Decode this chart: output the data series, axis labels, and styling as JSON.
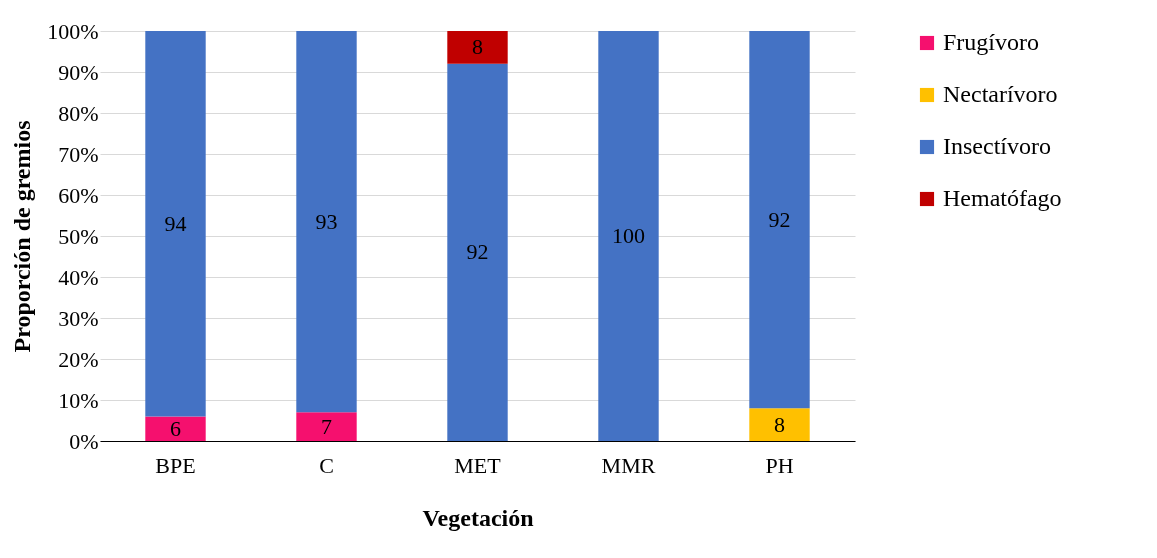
{
  "chart_data": {
    "type": "bar",
    "stacked": true,
    "xlabel": "Vegetación",
    "ylabel": "Proporción de gremios",
    "categories": [
      "BPE",
      "C",
      "MET",
      "MMR",
      "PH"
    ],
    "series": [
      {
        "name": "Frugívoro",
        "color": "#f5106e",
        "values": [
          6,
          7,
          null,
          null,
          null
        ]
      },
      {
        "name": "Nectarívoro",
        "color": "#ffc000",
        "values": [
          null,
          null,
          null,
          null,
          8
        ]
      },
      {
        "name": "Insectívoro",
        "color": "#4472c4",
        "values": [
          94,
          93,
          92,
          100,
          92
        ]
      },
      {
        "name": "Hematófago",
        "color": "#c00000",
        "values": [
          null,
          null,
          8,
          null,
          null
        ]
      }
    ],
    "ylim": [
      0,
      100
    ],
    "yticks": [
      {
        "value": 0,
        "label": "0%"
      },
      {
        "value": 10,
        "label": "10%"
      },
      {
        "value": 20,
        "label": "20%"
      },
      {
        "value": 30,
        "label": "30%"
      },
      {
        "value": 40,
        "label": "40%"
      },
      {
        "value": 50,
        "label": "50%"
      },
      {
        "value": 60,
        "label": "60%"
      },
      {
        "value": 70,
        "label": "70%"
      },
      {
        "value": 80,
        "label": "80%"
      },
      {
        "value": 90,
        "label": "90%"
      },
      {
        "value": 100,
        "label": "100%"
      }
    ],
    "grid": "y",
    "legend": "right",
    "data_labels": true
  }
}
